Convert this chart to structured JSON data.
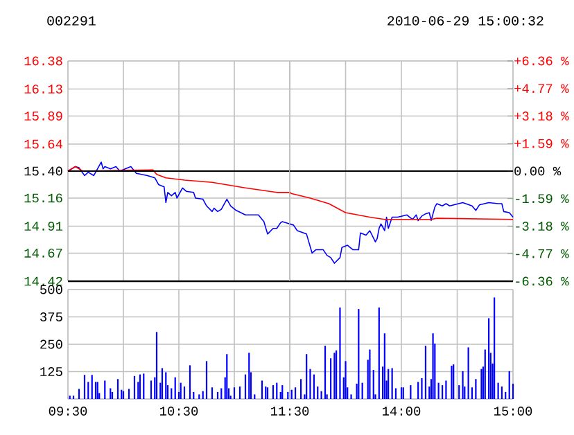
{
  "chart_data": [
    {
      "type": "line",
      "title": "002291",
      "series": [
        {
          "color": "#0000ff",
          "x": [
            9.5,
            9.567,
            9.6,
            9.65,
            9.683,
            9.733,
            9.8,
            9.817,
            9.833,
            9.883,
            9.933,
            9.967,
            10.067,
            10.117,
            10.217,
            10.283,
            10.317,
            10.367,
            10.383,
            10.4,
            10.433,
            10.467,
            10.483,
            10.533,
            10.567,
            10.633,
            10.65,
            10.717,
            10.75,
            10.8,
            10.817,
            10.85,
            10.883,
            10.933,
            10.967,
            11.017,
            11.1,
            11.217,
            11.267,
            11.3,
            11.35,
            11.383,
            11.417,
            11.433,
            11.5
          ],
          "values": [
            15.4,
            15.44,
            15.43,
            15.36,
            15.39,
            15.36,
            15.48,
            15.42,
            15.44,
            15.42,
            15.44,
            15.4,
            15.44,
            15.38,
            15.36,
            15.34,
            15.28,
            15.26,
            15.12,
            15.21,
            15.18,
            15.21,
            15.16,
            15.25,
            15.22,
            15.21,
            15.16,
            15.15,
            15.09,
            15.04,
            15.07,
            15.04,
            15.06,
            15.15,
            15.09,
            15.05,
            15.01,
            15.01,
            14.95,
            14.84,
            14.89,
            14.89,
            14.94,
            14.95,
            14.93
          ]
        },
        {
          "color": "#ff0000",
          "x": [
            9.5,
            9.567,
            9.633,
            10.267,
            10.3,
            10.383,
            10.55,
            10.8,
            11.1,
            11.383,
            11.5
          ],
          "values": [
            15.4,
            15.44,
            15.4,
            15.41,
            15.37,
            15.34,
            15.32,
            15.3,
            15.25,
            15.21,
            15.21
          ]
        }
      ],
      "xlim": [
        9.5,
        11.5
      ],
      "xticks": [
        {
          "value": 9.5,
          "label": null
        },
        {
          "value": 10,
          "label": null
        },
        {
          "value": 10.5,
          "label": null
        },
        {
          "value": 11,
          "label": null
        },
        {
          "value": 11.5,
          "label": null
        }
      ],
      "ylim": [
        14.42,
        16.38
      ],
      "yticks": [
        14.42,
        14.67,
        14.91,
        15.16,
        {
          "value": 15.4,
          "label": "15.40"
        },
        15.64,
        15.89,
        16.13,
        16.38
      ],
      "ref_lines": [
        {
          "axis": "y",
          "value": 15.4,
          "color": "#000000"
        }
      ],
      "grid": true,
      "tick_labels": "y"
    },
    {
      "type": "line",
      "title": "2010-06-29 15:00:32",
      "series": [
        {
          "color": "#0000ff",
          "x": [
            13,
            13.033,
            13.067,
            13.15,
            13.2,
            13.233,
            13.3,
            13.333,
            13.367,
            13.4,
            13.45,
            13.467,
            13.517,
            13.567,
            13.617,
            13.633,
            13.683,
            13.717,
            13.767,
            13.783,
            13.8,
            13.817,
            13.85,
            13.867,
            13.883,
            13.917,
            13.967,
            14.05,
            14.1,
            14.133,
            14.15,
            14.183,
            14.217,
            14.25,
            14.267,
            14.3,
            14.317,
            14.367,
            14.4,
            14.433,
            14.55,
            14.633,
            14.667,
            14.7,
            14.783,
            14.867,
            14.9,
            14.917,
            14.967,
            15
          ],
          "values": [
            14.93,
            14.92,
            14.87,
            14.84,
            14.67,
            14.7,
            14.7,
            14.65,
            14.63,
            14.58,
            14.63,
            14.72,
            14.74,
            14.7,
            14.7,
            14.85,
            14.83,
            14.87,
            14.77,
            14.8,
            14.89,
            14.93,
            14.87,
            14.99,
            14.89,
            14.99,
            14.99,
            15.01,
            14.97,
            15.01,
            14.96,
            15.0,
            15.02,
            15.03,
            14.96,
            15.08,
            15.11,
            15.09,
            15.11,
            15.09,
            15.12,
            15.09,
            15.05,
            15.1,
            15.12,
            15.11,
            15.11,
            15.04,
            15.03,
            14.99
          ]
        },
        {
          "color": "#ff0000",
          "x": [
            13,
            13.017,
            13.183,
            13.35,
            13.5,
            13.717,
            13.85,
            14.267,
            14.317,
            15
          ],
          "values": [
            15.21,
            15.2,
            15.16,
            15.11,
            15.03,
            14.99,
            14.97,
            14.97,
            14.98,
            14.97
          ]
        }
      ],
      "xlim": [
        13,
        15
      ],
      "xticks": [
        {
          "value": 13,
          "label": null
        },
        {
          "value": 13.5,
          "label": null
        },
        {
          "value": 14,
          "label": null
        },
        {
          "value": 14.5,
          "label": null
        },
        {
          "value": 15,
          "label": null
        }
      ],
      "ylim": [
        14.42,
        16.38
      ],
      "yticks": [
        14.42,
        14.67,
        14.91,
        15.16,
        15.4,
        15.64,
        15.89,
        16.13,
        16.38
      ],
      "y2lim": [
        -6.36,
        6.36
      ],
      "y2ticks": [
        {
          "value": -6.36,
          "label": "-6.36 %"
        },
        {
          "value": -4.77,
          "label": "-4.77 %"
        },
        {
          "value": -3.18,
          "label": "-3.18 %"
        },
        {
          "value": -1.59,
          "label": "-1.59 %"
        },
        {
          "value": 0,
          "label": "0.00 %"
        },
        {
          "value": 1.59,
          "label": "+1.59 %"
        },
        {
          "value": 3.18,
          "label": "+3.18 %"
        },
        {
          "value": 4.77,
          "label": "+4.77 %"
        },
        {
          "value": 6.36,
          "label": "+6.36 %"
        }
      ],
      "ref_lines": [
        {
          "axis": "y",
          "value": 15.4,
          "color": "#000000"
        }
      ],
      "grid": true,
      "tick_labels": false
    },
    {
      "type": "bar",
      "color": "#0000ff",
      "x": [
        9.517,
        9.55,
        9.6,
        9.65,
        9.683,
        9.717,
        9.75,
        9.767,
        9.783,
        9.833,
        9.883,
        9.9,
        9.95,
        9.983,
        10,
        10.05,
        10.1,
        10.133,
        10.15,
        10.183,
        10.25,
        10.283,
        10.3,
        10.333,
        10.35,
        10.383,
        10.4,
        10.433,
        10.467,
        10.5,
        10.517,
        10.55,
        10.6,
        10.633,
        10.683,
        10.717,
        10.75,
        10.8,
        10.85,
        10.883,
        10.917,
        10.933,
        10.95,
        10.967,
        11,
        11.05,
        11.1,
        11.133,
        11.15,
        11.183,
        11.25,
        11.283,
        11.3,
        11.35,
        11.383,
        11.417,
        11.433,
        11.483
      ],
      "values": [
        15,
        15,
        46,
        110,
        78,
        110,
        78,
        78,
        27,
        84,
        49,
        32,
        91,
        42,
        36,
        46,
        105,
        78,
        112,
        116,
        84,
        99,
        306,
        74,
        141,
        122,
        63,
        49,
        99,
        32,
        74,
        57,
        154,
        32,
        21,
        36,
        173,
        53,
        32,
        49,
        99,
        205,
        49,
        15,
        53,
        57,
        112,
        211,
        122,
        21,
        84,
        57,
        53,
        63,
        74,
        32,
        63,
        32
      ],
      "xlim": [
        9.5,
        11.5
      ],
      "xticks": [
        {
          "value": 9.5,
          "label": "09:30"
        },
        {
          "value": 10,
          "label": null
        },
        {
          "value": 10.5,
          "label": "10:30"
        },
        {
          "value": 11,
          "label": null
        },
        {
          "value": 11.5,
          "label": "11:30"
        }
      ],
      "ylim": [
        0,
        500
      ],
      "yticks": [
        {
          "value": 0,
          "label": null
        },
        125,
        250,
        375,
        500
      ],
      "grid": true
    },
    {
      "type": "bar",
      "color": "#0000ff",
      "x": [
        13.017,
        13.05,
        13.1,
        13.133,
        13.15,
        13.183,
        13.217,
        13.25,
        13.283,
        13.317,
        13.333,
        13.367,
        13.4,
        13.417,
        13.45,
        13.483,
        13.5,
        13.517,
        13.55,
        13.6,
        13.617,
        13.65,
        13.7,
        13.717,
        13.75,
        13.767,
        13.8,
        13.833,
        13.85,
        13.867,
        13.883,
        13.917,
        13.95,
        14,
        14.017,
        14.083,
        14.15,
        14.183,
        14.217,
        14.25,
        14.267,
        14.283,
        14.3,
        14.333,
        14.367,
        14.4,
        14.45,
        14.467,
        14.517,
        14.55,
        14.567,
        14.6,
        14.633,
        14.667,
        14.717,
        14.733,
        14.75,
        14.783,
        14.8,
        14.817,
        14.833,
        14.867,
        14.9,
        14.933,
        14.967,
        15
      ],
      "values": [
        42,
        53,
        91,
        21,
        205,
        137,
        112,
        57,
        36,
        243,
        21,
        186,
        211,
        222,
        418,
        99,
        173,
        53,
        21,
        70,
        411,
        74,
        179,
        226,
        133,
        21,
        418,
        148,
        300,
        84,
        137,
        141,
        49,
        53,
        53,
        63,
        78,
        95,
        243,
        57,
        91,
        300,
        253,
        74,
        63,
        84,
        152,
        158,
        63,
        127,
        57,
        236,
        53,
        91,
        137,
        148,
        226,
        369,
        211,
        162,
        464,
        74,
        57,
        32,
        127,
        70
      ],
      "xlim": [
        13,
        15
      ],
      "xticks": [
        {
          "value": 13,
          "label": null
        },
        {
          "value": 13.5,
          "label": null
        },
        {
          "value": 14,
          "label": "14:00"
        },
        {
          "value": 14.5,
          "label": null
        },
        {
          "value": 15,
          "label": "15:00"
        }
      ],
      "ylim": [
        0,
        500
      ],
      "yticks": [
        0,
        125,
        250,
        375,
        500
      ],
      "grid": true,
      "tick_labels": "x"
    }
  ]
}
